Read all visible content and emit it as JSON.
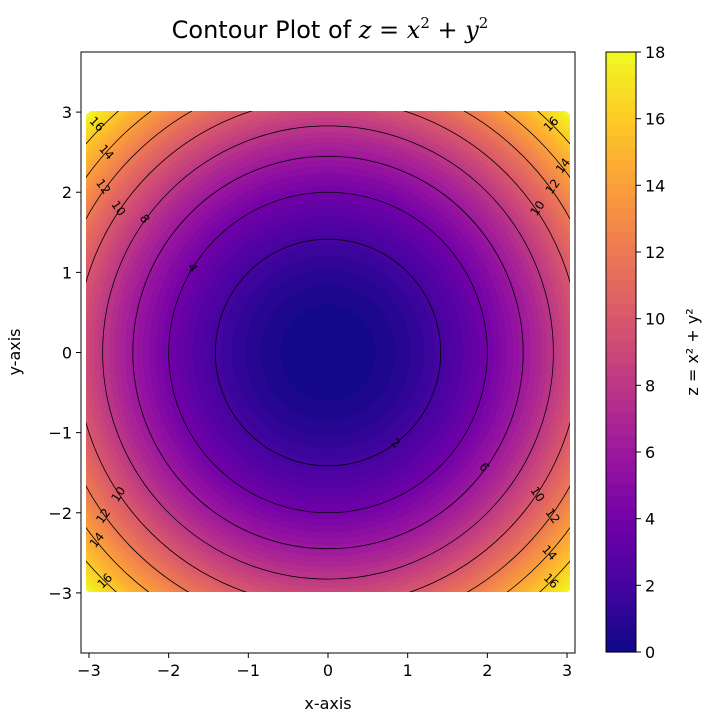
{
  "chart_data": {
    "type": "contour",
    "function": "z = x^2 + y^2",
    "title_prefix": "Contour Plot of ",
    "title_math": {
      "lhs": "z",
      "x": "x",
      "y": "y",
      "exp": "2"
    },
    "xlabel": "x-axis",
    "ylabel": "y-axis",
    "xlim": [
      -3.1,
      3.1
    ],
    "ylim": [
      -3.75,
      3.75
    ],
    "data_extent": {
      "x": [
        -3,
        3
      ],
      "y": [
        -3,
        3
      ]
    },
    "x_ticks": [
      -3,
      -2,
      -1,
      0,
      1,
      2,
      3
    ],
    "y_ticks": [
      -3,
      -2,
      -1,
      0,
      1,
      2,
      3
    ],
    "x_tick_labels": [
      "−3",
      "−2",
      "−1",
      "0",
      "1",
      "2",
      "3"
    ],
    "y_tick_labels": [
      "−3",
      "−2",
      "−1",
      "0",
      "1",
      "2",
      "3"
    ],
    "contour_levels": [
      2,
      4,
      6,
      8,
      10,
      12,
      14,
      16
    ],
    "contour_labels": [
      {
        "level": 2,
        "text": "2",
        "x": 0.85,
        "y": -1.13
      },
      {
        "level": 4,
        "text": "4",
        "x": -1.7,
        "y": 1.06
      },
      {
        "level": 6,
        "text": "6",
        "x": 1.96,
        "y": -1.43
      },
      {
        "level": 8,
        "text": "8",
        "x": -2.3,
        "y": 1.67
      },
      {
        "level": 10,
        "text": "10",
        "x": -2.63,
        "y": 1.8
      },
      {
        "level": 10,
        "text": "10",
        "x": 2.63,
        "y": 1.8
      },
      {
        "level": 10,
        "text": "10",
        "x": -2.63,
        "y": -1.77
      },
      {
        "level": 10,
        "text": "10",
        "x": 2.63,
        "y": -1.77
      },
      {
        "level": 12,
        "text": "12",
        "x": -2.82,
        "y": 2.07
      },
      {
        "level": 12,
        "text": "12",
        "x": 2.82,
        "y": 2.07
      },
      {
        "level": 12,
        "text": "12",
        "x": -2.82,
        "y": -2.04
      },
      {
        "level": 12,
        "text": "12",
        "x": 2.82,
        "y": -2.04
      },
      {
        "level": 14,
        "text": "14",
        "x": -2.78,
        "y": 2.5
      },
      {
        "level": 14,
        "text": "14",
        "x": 2.95,
        "y": 2.33
      },
      {
        "level": 14,
        "text": "14",
        "x": -2.9,
        "y": -2.34
      },
      {
        "level": 14,
        "text": "14",
        "x": 2.78,
        "y": -2.5
      },
      {
        "level": 16,
        "text": "16",
        "x": -2.9,
        "y": 2.85
      },
      {
        "level": 16,
        "text": "16",
        "x": 2.8,
        "y": 2.85
      },
      {
        "level": 16,
        "text": "16",
        "x": -2.8,
        "y": -2.85
      },
      {
        "level": 16,
        "text": "16",
        "x": 2.8,
        "y": -2.85
      }
    ],
    "colormap": "plasma",
    "colorbar": {
      "label": "z = x² + y²",
      "range": [
        0,
        18
      ],
      "ticks": [
        0,
        2,
        4,
        6,
        8,
        10,
        12,
        14,
        16,
        18
      ]
    },
    "colors": {
      "plasma_stops": [
        "#0d0887",
        "#46039f",
        "#7201a8",
        "#9c179e",
        "#bd3786",
        "#d8576b",
        "#ed7953",
        "#fb9f3a",
        "#fdca26",
        "#f0f921"
      ],
      "contour_line": "#000000"
    }
  }
}
